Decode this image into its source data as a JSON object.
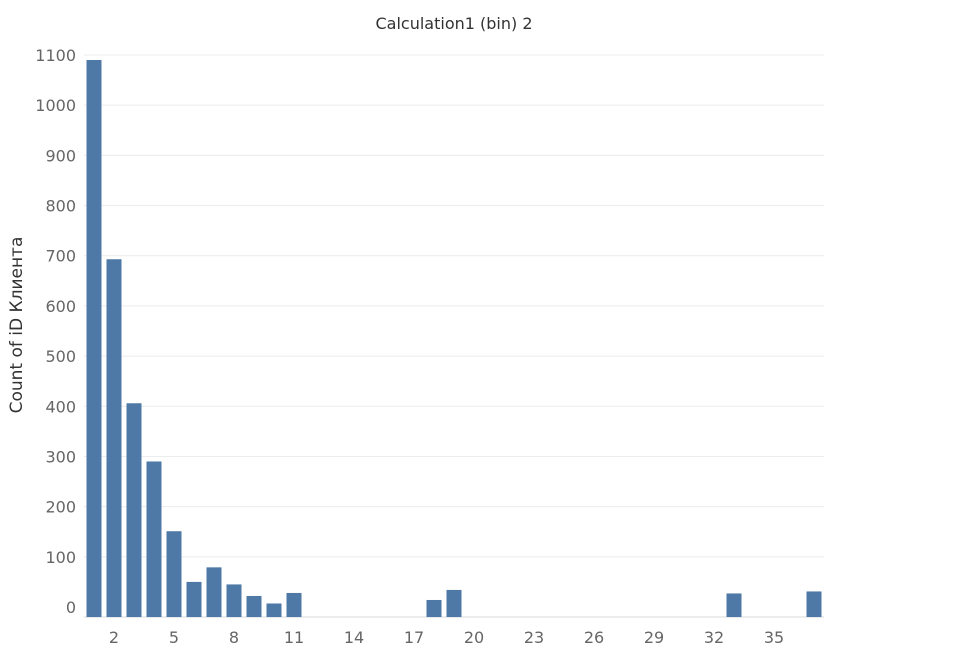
{
  "chart_data": {
    "type": "bar",
    "title": "Calculation1 (bin) 2",
    "xlabel": "",
    "ylabel": "Count of iD Клиента",
    "x": [
      1,
      2,
      3,
      4,
      5,
      6,
      7,
      8,
      9,
      10,
      11,
      18,
      19,
      33,
      37
    ],
    "values": [
      1090,
      693,
      406,
      290,
      151,
      50,
      79,
      45,
      22,
      7,
      28,
      14,
      34,
      27,
      31
    ],
    "xlim": [
      1,
      37
    ],
    "ylim": [
      -20,
      1120
    ],
    "x_ticks": [
      {
        "value": 2,
        "label": "2"
      },
      {
        "value": 5,
        "label": "5"
      },
      {
        "value": 8,
        "label": "8"
      },
      {
        "value": 11,
        "label": "11"
      },
      {
        "value": 14,
        "label": "14"
      },
      {
        "value": 17,
        "label": "17"
      },
      {
        "value": 20,
        "label": "20"
      },
      {
        "value": 23,
        "label": "23"
      },
      {
        "value": 26,
        "label": "26"
      },
      {
        "value": 29,
        "label": "29"
      },
      {
        "value": 32,
        "label": "32"
      },
      {
        "value": 35,
        "label": "35"
      }
    ],
    "y_ticks": [
      {
        "value": 0,
        "label": "0"
      },
      {
        "value": 100,
        "label": "100"
      },
      {
        "value": 200,
        "label": "200"
      },
      {
        "value": 300,
        "label": "300"
      },
      {
        "value": 400,
        "label": "400"
      },
      {
        "value": 500,
        "label": "500"
      },
      {
        "value": 600,
        "label": "600"
      },
      {
        "value": 700,
        "label": "700"
      },
      {
        "value": 800,
        "label": "800"
      },
      {
        "value": 900,
        "label": "900"
      },
      {
        "value": 1000,
        "label": "1000"
      },
      {
        "value": 1100,
        "label": "1100"
      }
    ],
    "grid": true,
    "colors": {
      "bar": "#4e79a7"
    }
  }
}
